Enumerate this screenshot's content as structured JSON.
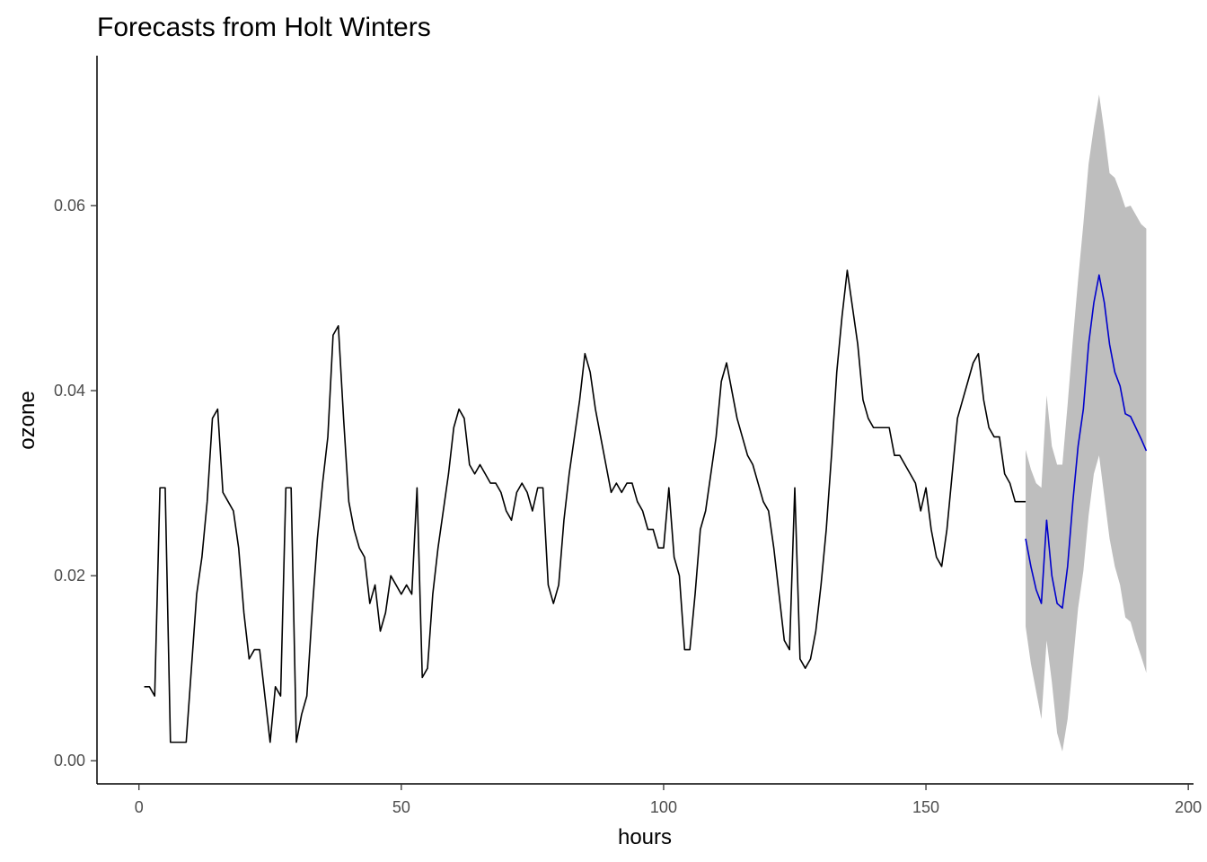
{
  "chart_data": {
    "type": "line",
    "title": "Forecasts from Holt Winters",
    "xlabel": "hours",
    "ylabel": "ozone",
    "xlim": [
      -8,
      201
    ],
    "ylim": [
      -0.0025,
      0.0762
    ],
    "xticks": [
      0,
      50,
      100,
      150,
      200
    ],
    "yticks": [
      0.0,
      0.02,
      0.04,
      0.06
    ],
    "xtick_labels": [
      "0",
      "50",
      "100",
      "150",
      "200"
    ],
    "ytick_labels": [
      "0.00",
      "0.02",
      "0.04",
      "0.06"
    ],
    "grid": false,
    "colors": {
      "observed": "#000000",
      "forecast": "#0000cc",
      "interval": "#bebebe"
    },
    "series": [
      {
        "role": "observed",
        "x": [
          1,
          2,
          3,
          4,
          5,
          6,
          7,
          8,
          9,
          10,
          11,
          12,
          13,
          14,
          15,
          16,
          17,
          18,
          19,
          20,
          21,
          22,
          23,
          24,
          25,
          26,
          27,
          28,
          29,
          30,
          31,
          32,
          33,
          34,
          35,
          36,
          37,
          38,
          39,
          40,
          41,
          42,
          43,
          44,
          45,
          46,
          47,
          48,
          49,
          50,
          51,
          52,
          53,
          54,
          55,
          56,
          57,
          58,
          59,
          60,
          61,
          62,
          63,
          64,
          65,
          66,
          67,
          68,
          69,
          70,
          71,
          72,
          73,
          74,
          75,
          76,
          77,
          78,
          79,
          80,
          81,
          82,
          83,
          84,
          85,
          86,
          87,
          88,
          89,
          90,
          91,
          92,
          93,
          94,
          95,
          96,
          97,
          98,
          99,
          100,
          101,
          102,
          103,
          104,
          105,
          106,
          107,
          108,
          109,
          110,
          111,
          112,
          113,
          114,
          115,
          116,
          117,
          118,
          119,
          120,
          121,
          122,
          123,
          124,
          125,
          126,
          127,
          128,
          129,
          130,
          131,
          132,
          133,
          134,
          135,
          136,
          137,
          138,
          139,
          140,
          141,
          142,
          143,
          144,
          145,
          146,
          147,
          148,
          149,
          150,
          151,
          152,
          153,
          154,
          155,
          156,
          157,
          158,
          159,
          160,
          161,
          162,
          163,
          164,
          165,
          166,
          167,
          168,
          169
        ],
        "y": [
          0.008,
          0.008,
          0.007,
          0.0295,
          0.0295,
          0.002,
          0.002,
          0.002,
          0.002,
          0.01,
          0.018,
          0.022,
          0.028,
          0.037,
          0.038,
          0.029,
          0.028,
          0.027,
          0.023,
          0.016,
          0.011,
          0.012,
          0.012,
          0.007,
          0.002,
          0.008,
          0.007,
          0.0295,
          0.0295,
          0.002,
          0.005,
          0.007,
          0.016,
          0.024,
          0.03,
          0.035,
          0.046,
          0.047,
          0.037,
          0.028,
          0.025,
          0.023,
          0.022,
          0.017,
          0.019,
          0.014,
          0.016,
          0.02,
          0.019,
          0.018,
          0.019,
          0.018,
          0.0295,
          0.009,
          0.01,
          0.018,
          0.023,
          0.027,
          0.031,
          0.036,
          0.038,
          0.037,
          0.032,
          0.031,
          0.032,
          0.031,
          0.03,
          0.03,
          0.029,
          0.027,
          0.026,
          0.029,
          0.03,
          0.029,
          0.027,
          0.0295,
          0.0295,
          0.019,
          0.017,
          0.019,
          0.026,
          0.031,
          0.035,
          0.039,
          0.044,
          0.042,
          0.038,
          0.035,
          0.032,
          0.029,
          0.03,
          0.029,
          0.03,
          0.03,
          0.028,
          0.027,
          0.025,
          0.025,
          0.023,
          0.023,
          0.0295,
          0.022,
          0.02,
          0.012,
          0.012,
          0.018,
          0.025,
          0.027,
          0.031,
          0.035,
          0.041,
          0.043,
          0.04,
          0.037,
          0.035,
          0.033,
          0.032,
          0.03,
          0.028,
          0.027,
          0.023,
          0.018,
          0.013,
          0.012,
          0.0295,
          0.011,
          0.01,
          0.011,
          0.014,
          0.019,
          0.025,
          0.033,
          0.042,
          0.048,
          0.053,
          0.049,
          0.045,
          0.039,
          0.037,
          0.036,
          0.036,
          0.036,
          0.036,
          0.033,
          0.033,
          0.032,
          0.031,
          0.03,
          0.027,
          0.0295,
          0.025,
          0.022,
          0.021,
          0.025,
          0.031,
          0.037,
          0.039,
          0.041,
          0.043,
          0.044,
          0.039,
          0.036,
          0.035,
          0.035,
          0.031,
          0.03,
          0.028,
          0.028,
          0.028
        ]
      },
      {
        "role": "forecast",
        "x": [
          169,
          170,
          171,
          172,
          173,
          174,
          175,
          176,
          177,
          178,
          179,
          180,
          181,
          182,
          183,
          184,
          185,
          186,
          187,
          188,
          189,
          190,
          191,
          192
        ],
        "y": [
          0.024,
          0.021,
          0.0185,
          0.017,
          0.026,
          0.02,
          0.017,
          0.0165,
          0.021,
          0.028,
          0.034,
          0.038,
          0.045,
          0.0495,
          0.0525,
          0.0495,
          0.045,
          0.042,
          0.0405,
          0.0375,
          0.0372,
          0.036,
          0.0348,
          0.0335
        ]
      }
    ],
    "interval": {
      "role": "prediction interval",
      "x": [
        169,
        170,
        171,
        172,
        173,
        174,
        175,
        176,
        177,
        178,
        179,
        180,
        181,
        182,
        183,
        184,
        185,
        186,
        187,
        188,
        189,
        190,
        191,
        192
      ],
      "lower": [
        0.0145,
        0.0105,
        0.0075,
        0.0045,
        0.013,
        0.0085,
        0.003,
        0.001,
        0.0045,
        0.0105,
        0.0165,
        0.0205,
        0.0265,
        0.031,
        0.033,
        0.0285,
        0.024,
        0.021,
        0.019,
        0.0155,
        0.015,
        0.013,
        0.0113,
        0.0095
      ],
      "upper": [
        0.0336,
        0.0315,
        0.03,
        0.0295,
        0.0395,
        0.034,
        0.032,
        0.032,
        0.0385,
        0.0455,
        0.052,
        0.058,
        0.0645,
        0.0685,
        0.072,
        0.068,
        0.0635,
        0.063,
        0.0615,
        0.0598,
        0.06,
        0.059,
        0.058,
        0.0575
      ]
    }
  }
}
